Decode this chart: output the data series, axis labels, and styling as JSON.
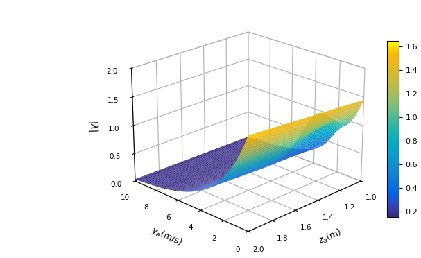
{
  "za_min": 1.0,
  "za_max": 2.0,
  "ya_min": 0.0,
  "ya_max": 10.0,
  "zlim": [
    0,
    2
  ],
  "colorbar_min": 0.15,
  "colorbar_max": 1.65,
  "colorbar_ticks": [
    0.2,
    0.4,
    0.6,
    0.8,
    1.0,
    1.2,
    1.4,
    1.6
  ],
  "xlabel": "$z_a$(m)",
  "ylabel": "$\\dot{y}_a$(m/s)",
  "zlabel": "$|\\lambda|$",
  "xticks": [
    1.0,
    1.2,
    1.4,
    1.6,
    1.8,
    2.0
  ],
  "yticks": [
    0,
    2,
    4,
    6,
    8,
    10
  ],
  "zticks": [
    0,
    0.5,
    1.0,
    1.5,
    2.0
  ],
  "n_grid": 80,
  "elev": 22,
  "azim": -135
}
